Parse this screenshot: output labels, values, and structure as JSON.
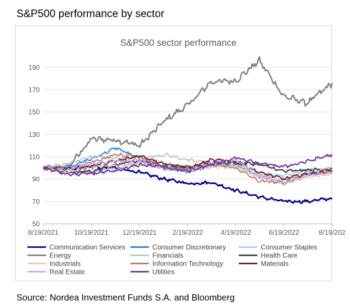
{
  "page": {
    "title": "S&P500 performance by sector",
    "source": "Source: Nordea Investment Funds S.A. and Bloomberg"
  },
  "chart_data": {
    "type": "line",
    "title": "S&P500 sector performance",
    "xlabel": "",
    "ylabel": "",
    "ylim": [
      50,
      200
    ],
    "yticks": [
      50,
      70,
      90,
      110,
      130,
      150,
      170,
      190
    ],
    "xlim": [
      "2021-08-19",
      "2022-08-19"
    ],
    "xticks": [
      "8/19/2021",
      "10/19/2021",
      "12/19/2021",
      "2/19/2022",
      "4/19/2022",
      "6/19/2022",
      "8/19/202"
    ],
    "grid": "horizontal",
    "legend_position": "bottom",
    "x": [
      "2021-08-19",
      "2021-09-19",
      "2021-10-19",
      "2021-11-19",
      "2021-12-19",
      "2022-01-19",
      "2022-02-19",
      "2022-03-19",
      "2022-04-19",
      "2022-05-19",
      "2022-06-19",
      "2022-07-19",
      "2022-08-19"
    ],
    "series": [
      {
        "name": "Communication Services",
        "color": "#00008b",
        "width": 2.2,
        "values": [
          100,
          99,
          101,
          100,
          96,
          90,
          86,
          87,
          80,
          74,
          70,
          70,
          73
        ]
      },
      {
        "name": "Consumer Discretionary",
        "color": "#1f7fe0",
        "width": 1.6,
        "values": [
          100,
          101,
          108,
          118,
          108,
          99,
          96,
          102,
          103,
          92,
          86,
          94,
          97
        ]
      },
      {
        "name": "Consumer Staples",
        "color": "#a9c9f2",
        "width": 1.6,
        "values": [
          100,
          98,
          97,
          99,
          106,
          104,
          101,
          101,
          104,
          95,
          93,
          98,
          100
        ]
      },
      {
        "name": "Energy",
        "color": "#7f7f7f",
        "width": 2.0,
        "values": [
          100,
          100,
          126,
          125,
          120,
          142,
          157,
          177,
          178,
          196,
          164,
          158,
          176
        ]
      },
      {
        "name": "Financials",
        "color": "#bfbfbf",
        "width": 1.6,
        "values": [
          100,
          104,
          110,
          109,
          108,
          112,
          107,
          104,
          102,
          93,
          90,
          96,
          97
        ]
      },
      {
        "name": "Health Care",
        "color": "#404040",
        "width": 1.8,
        "values": [
          100,
          96,
          97,
          103,
          107,
          101,
          100,
          104,
          105,
          103,
          97,
          98,
          99
        ]
      },
      {
        "name": "Industrials",
        "color": "#f5c6b8",
        "width": 1.6,
        "values": [
          100,
          96,
          101,
          102,
          104,
          100,
          98,
          101,
          100,
          92,
          86,
          92,
          95
        ]
      },
      {
        "name": "Information Technology",
        "color": "#b87a6a",
        "width": 1.6,
        "values": [
          100,
          99,
          105,
          112,
          110,
          101,
          99,
          103,
          100,
          88,
          87,
          95,
          99
        ]
      },
      {
        "name": "Materials",
        "color": "#6b2a2a",
        "width": 1.8,
        "values": [
          100,
          99,
          102,
          106,
          111,
          104,
          100,
          107,
          106,
          96,
          90,
          95,
          97
        ]
      },
      {
        "name": "Real Estate",
        "color": "#c9a6e8",
        "width": 1.6,
        "values": [
          100,
          98,
          104,
          106,
          107,
          100,
          98,
          104,
          107,
          94,
          86,
          93,
          96
        ]
      },
      {
        "name": "Utilities",
        "color": "#7030a0",
        "width": 1.8,
        "values": [
          100,
          94,
          95,
          97,
          103,
          101,
          97,
          103,
          109,
          104,
          101,
          106,
          112
        ]
      }
    ]
  }
}
